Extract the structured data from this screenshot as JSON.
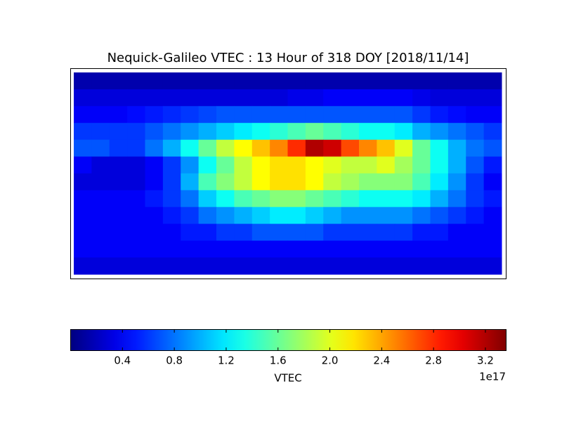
{
  "chart_data": {
    "type": "heatmap",
    "title": "Nequick-Galileo VTEC : 13 Hour of 318 DOY [2018/11/14]",
    "z": [
      [
        0.15,
        0.15,
        0.15,
        0.15,
        0.15,
        0.15,
        0.15,
        0.15,
        0.15,
        0.15,
        0.15,
        0.15,
        0.15,
        0.15,
        0.15,
        0.15,
        0.15,
        0.15,
        0.15,
        0.15,
        0.15,
        0.15,
        0.15,
        0.15
      ],
      [
        0.3,
        0.3,
        0.3,
        0.3,
        0.3,
        0.3,
        0.3,
        0.3,
        0.3,
        0.3,
        0.3,
        0.3,
        0.35,
        0.35,
        0.4,
        0.4,
        0.4,
        0.4,
        0.4,
        0.35,
        0.3,
        0.3,
        0.3,
        0.3
      ],
      [
        0.4,
        0.4,
        0.4,
        0.45,
        0.5,
        0.55,
        0.6,
        0.65,
        0.7,
        0.7,
        0.7,
        0.7,
        0.7,
        0.7,
        0.7,
        0.7,
        0.7,
        0.7,
        0.7,
        0.6,
        0.5,
        0.45,
        0.4,
        0.4
      ],
      [
        0.6,
        0.6,
        0.6,
        0.6,
        0.7,
        0.8,
        0.9,
        1.0,
        1.1,
        1.2,
        1.3,
        1.4,
        1.5,
        1.6,
        1.5,
        1.4,
        1.3,
        1.3,
        1.2,
        1.0,
        0.9,
        0.8,
        0.7,
        0.6
      ],
      [
        0.7,
        0.7,
        0.6,
        0.6,
        0.8,
        1.0,
        1.3,
        1.6,
        1.9,
        2.1,
        2.3,
        2.5,
        2.8,
        3.2,
        3.1,
        2.7,
        2.5,
        2.3,
        2.0,
        1.6,
        1.3,
        1.0,
        0.8,
        0.7
      ],
      [
        0.4,
        0.3,
        0.3,
        0.3,
        0.4,
        0.6,
        0.9,
        1.3,
        1.6,
        1.9,
        2.1,
        2.2,
        2.2,
        2.1,
        2.0,
        1.9,
        1.9,
        2.0,
        1.8,
        1.6,
        1.3,
        1.0,
        0.7,
        0.5
      ],
      [
        0.3,
        0.3,
        0.3,
        0.3,
        0.4,
        0.6,
        1.0,
        1.5,
        1.7,
        1.9,
        2.1,
        2.2,
        2.2,
        2.1,
        1.9,
        1.8,
        1.7,
        1.7,
        1.7,
        1.5,
        1.2,
        0.9,
        0.6,
        0.4
      ],
      [
        0.4,
        0.4,
        0.4,
        0.4,
        0.5,
        0.6,
        0.8,
        1.1,
        1.3,
        1.5,
        1.6,
        1.7,
        1.7,
        1.6,
        1.5,
        1.4,
        1.3,
        1.3,
        1.3,
        1.2,
        1.0,
        0.8,
        0.6,
        0.5
      ],
      [
        0.4,
        0.4,
        0.4,
        0.4,
        0.4,
        0.5,
        0.6,
        0.8,
        0.9,
        1.0,
        1.1,
        1.2,
        1.2,
        1.1,
        1.0,
        0.9,
        0.9,
        0.9,
        0.9,
        0.8,
        0.7,
        0.6,
        0.5,
        0.4
      ],
      [
        0.4,
        0.4,
        0.4,
        0.4,
        0.4,
        0.4,
        0.5,
        0.5,
        0.6,
        0.6,
        0.7,
        0.7,
        0.7,
        0.7,
        0.6,
        0.6,
        0.6,
        0.6,
        0.6,
        0.5,
        0.5,
        0.4,
        0.4,
        0.4
      ],
      [
        0.4,
        0.4,
        0.4,
        0.4,
        0.4,
        0.4,
        0.4,
        0.4,
        0.4,
        0.4,
        0.4,
        0.4,
        0.4,
        0.4,
        0.4,
        0.4,
        0.4,
        0.4,
        0.4,
        0.4,
        0.4,
        0.4,
        0.4,
        0.4
      ],
      [
        0.3,
        0.3,
        0.3,
        0.3,
        0.3,
        0.3,
        0.3,
        0.3,
        0.3,
        0.3,
        0.3,
        0.3,
        0.3,
        0.3,
        0.3,
        0.3,
        0.3,
        0.3,
        0.3,
        0.3,
        0.3,
        0.3,
        0.3,
        0.3
      ]
    ],
    "colormap": "jet",
    "clim": [
      0,
      3.36
    ],
    "colorbar": {
      "label": "VTEC",
      "offset_label": "1e17",
      "ticks": [
        0.4,
        0.8,
        1.2,
        1.6,
        {
          "value": 2,
          "label": "2.0"
        },
        2.4,
        2.8,
        3.2
      ]
    }
  }
}
